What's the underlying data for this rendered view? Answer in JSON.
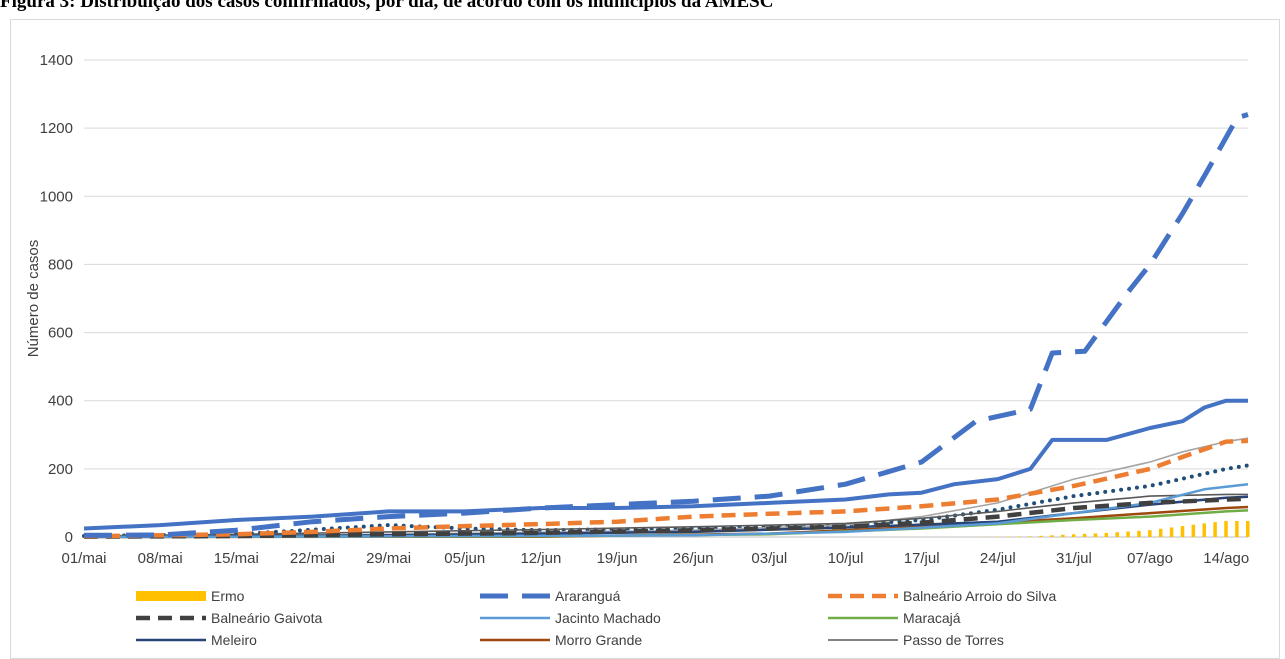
{
  "figure_title": "Figura 3: Distribuição dos casos confirmados, por dia, de acordo com os municípios da AMESC",
  "chart_data": {
    "type": "line",
    "title": "",
    "xlabel": "",
    "ylabel": "Número de casos",
    "ylim": [
      0,
      1400
    ],
    "yticks": [
      0,
      200,
      400,
      600,
      800,
      1000,
      1200,
      1400
    ],
    "x_labels": [
      "01/mai",
      "08/mai",
      "15/mai",
      "22/mai",
      "29/mai",
      "05/jun",
      "12/jun",
      "19/jun",
      "26/jun",
      "03/jul",
      "10/jul",
      "17/jul",
      "24/jul",
      "31/jul",
      "07/ago",
      "14/ago"
    ],
    "grid": "horizontal",
    "legend_position": "bottom",
    "series": [
      {
        "name": "Ermo",
        "color": "#ffc000",
        "style": "bars",
        "points": [
          [
            "01/mai",
            0
          ],
          [
            "20/jul",
            0
          ],
          [
            "27/jul",
            2
          ],
          [
            "31/jul",
            8
          ],
          [
            "03/ago",
            12
          ],
          [
            "07/ago",
            20
          ],
          [
            "10/ago",
            32
          ],
          [
            "12/ago",
            40
          ],
          [
            "14/ago",
            47
          ],
          [
            "16/ago",
            47
          ]
        ]
      },
      {
        "name": "Araranguá",
        "color": "#4472c4",
        "style": "long-dash",
        "points": [
          [
            "01/mai",
            5
          ],
          [
            "08/mai",
            6
          ],
          [
            "15/mai",
            20
          ],
          [
            "22/mai",
            45
          ],
          [
            "29/mai",
            60
          ],
          [
            "05/jun",
            70
          ],
          [
            "12/jun",
            85
          ],
          [
            "19/jun",
            95
          ],
          [
            "26/jun",
            105
          ],
          [
            "03/jul",
            120
          ],
          [
            "10/jul",
            155
          ],
          [
            "17/jul",
            220
          ],
          [
            "22/jul",
            340
          ],
          [
            "27/jul",
            375
          ],
          [
            "29/jul",
            540
          ],
          [
            "01/ago",
            545
          ],
          [
            "05/ago",
            720
          ],
          [
            "07/ago",
            800
          ],
          [
            "10/ago",
            950
          ],
          [
            "12/ago",
            1060
          ],
          [
            "15/ago",
            1230
          ],
          [
            "16/ago",
            1240
          ]
        ]
      },
      {
        "name": "Balneário Arroio do Silva",
        "color": "#ed7d31",
        "style": "dash",
        "points": [
          [
            "01/mai",
            2
          ],
          [
            "15/mai",
            8
          ],
          [
            "22/mai",
            15
          ],
          [
            "29/mai",
            25
          ],
          [
            "05/jun",
            32
          ],
          [
            "12/jun",
            38
          ],
          [
            "19/jun",
            45
          ],
          [
            "26/jun",
            60
          ],
          [
            "03/jul",
            68
          ],
          [
            "10/jul",
            75
          ],
          [
            "17/jul",
            90
          ],
          [
            "24/jul",
            110
          ],
          [
            "31/jul",
            150
          ],
          [
            "07/ago",
            200
          ],
          [
            "10/ago",
            235
          ],
          [
            "14/ago",
            280
          ],
          [
            "16/ago",
            282
          ]
        ]
      },
      {
        "name": "Balneário Gaivota",
        "color": "#404040",
        "style": "dash",
        "points": [
          [
            "01/mai",
            1
          ],
          [
            "15/mai",
            3
          ],
          [
            "29/mai",
            8
          ],
          [
            "12/jun",
            12
          ],
          [
            "26/jun",
            20
          ],
          [
            "10/jul",
            30
          ],
          [
            "17/jul",
            42
          ],
          [
            "24/jul",
            60
          ],
          [
            "31/jul",
            85
          ],
          [
            "07/ago",
            100
          ],
          [
            "14/ago",
            110
          ],
          [
            "16/ago",
            112
          ]
        ]
      },
      {
        "name": "Jacinto Machado",
        "color": "#5b9bd5",
        "style": "solid",
        "points": [
          [
            "01/mai",
            0
          ],
          [
            "29/mai",
            2
          ],
          [
            "26/jun",
            5
          ],
          [
            "10/jul",
            15
          ],
          [
            "24/jul",
            40
          ],
          [
            "31/jul",
            70
          ],
          [
            "07/ago",
            100
          ],
          [
            "12/ago",
            140
          ],
          [
            "16/ago",
            155
          ]
        ]
      },
      {
        "name": "Maracajá",
        "color": "#70ad47",
        "style": "solid",
        "points": [
          [
            "01/mai",
            0
          ],
          [
            "12/jun",
            2
          ],
          [
            "03/jul",
            8
          ],
          [
            "17/jul",
            25
          ],
          [
            "31/jul",
            50
          ],
          [
            "07/ago",
            60
          ],
          [
            "14/ago",
            75
          ],
          [
            "16/ago",
            78
          ]
        ]
      },
      {
        "name": "Meleiro",
        "color": "#264478",
        "style": "solid",
        "points": [
          [
            "01/mai",
            1
          ],
          [
            "29/mai",
            5
          ],
          [
            "26/jun",
            15
          ],
          [
            "10/jul",
            28
          ],
          [
            "24/jul",
            45
          ],
          [
            "31/jul",
            70
          ],
          [
            "07/ago",
            95
          ],
          [
            "14/ago",
            115
          ],
          [
            "16/ago",
            118
          ]
        ]
      },
      {
        "name": "Morro Grande",
        "color": "#9e480e",
        "style": "solid",
        "points": [
          [
            "01/mai",
            0
          ],
          [
            "12/jun",
            1
          ],
          [
            "03/jul",
            10
          ],
          [
            "17/jul",
            30
          ],
          [
            "31/jul",
            55
          ],
          [
            "07/ago",
            70
          ],
          [
            "14/ago",
            85
          ],
          [
            "16/ago",
            88
          ]
        ]
      },
      {
        "name": "Passo de Torres",
        "color": "#595959",
        "style": "thin",
        "points": [
          [
            "01/mai",
            3
          ],
          [
            "15/mai",
            8
          ],
          [
            "29/mai",
            15
          ],
          [
            "12/jun",
            22
          ],
          [
            "26/jun",
            30
          ],
          [
            "10/jul",
            40
          ],
          [
            "17/jul",
            55
          ],
          [
            "24/jul",
            75
          ],
          [
            "31/jul",
            100
          ],
          [
            "07/ago",
            120
          ],
          [
            "14/ago",
            125
          ],
          [
            "16/ago",
            125
          ]
        ]
      },
      {
        "name": "",
        "color": "#a5a5a5",
        "style": "thin",
        "points": [
          [
            "01/mai",
            2
          ],
          [
            "29/mai",
            8
          ],
          [
            "26/jun",
            20
          ],
          [
            "10/jul",
            35
          ],
          [
            "17/jul",
            60
          ],
          [
            "24/jul",
            100
          ],
          [
            "31/jul",
            170
          ],
          [
            "07/ago",
            220
          ],
          [
            "10/ago",
            250
          ],
          [
            "14/ago",
            280
          ],
          [
            "16/ago",
            290
          ]
        ]
      },
      {
        "name": "",
        "color": "#1f4e79",
        "style": "dotted",
        "points": [
          [
            "01/mai",
            3
          ],
          [
            "15/mai",
            8
          ],
          [
            "29/mai",
            35
          ],
          [
            "05/jun",
            25
          ],
          [
            "12/jun",
            20
          ],
          [
            "26/jun",
            25
          ],
          [
            "10/jul",
            35
          ],
          [
            "17/jul",
            50
          ],
          [
            "24/jul",
            80
          ],
          [
            "31/jul",
            120
          ],
          [
            "07/ago",
            150
          ],
          [
            "14/ago",
            200
          ],
          [
            "16/ago",
            210
          ]
        ]
      },
      {
        "name": "",
        "color": "#4472c4",
        "style": "solid-thick",
        "points": [
          [
            "01/mai",
            25
          ],
          [
            "08/mai",
            35
          ],
          [
            "15/mai",
            50
          ],
          [
            "22/mai",
            60
          ],
          [
            "29/mai",
            75
          ],
          [
            "05/jun",
            75
          ],
          [
            "12/jun",
            85
          ],
          [
            "19/jun",
            85
          ],
          [
            "26/jun",
            90
          ],
          [
            "03/jul",
            100
          ],
          [
            "10/jul",
            110
          ],
          [
            "14/jul",
            125
          ],
          [
            "17/jul",
            130
          ],
          [
            "20/jul",
            155
          ],
          [
            "24/jul",
            170
          ],
          [
            "27/jul",
            200
          ],
          [
            "29/jul",
            285
          ],
          [
            "03/ago",
            285
          ],
          [
            "07/ago",
            320
          ],
          [
            "10/ago",
            340
          ],
          [
            "12/ago",
            380
          ],
          [
            "14/ago",
            400
          ],
          [
            "16/ago",
            400
          ]
        ]
      }
    ]
  }
}
